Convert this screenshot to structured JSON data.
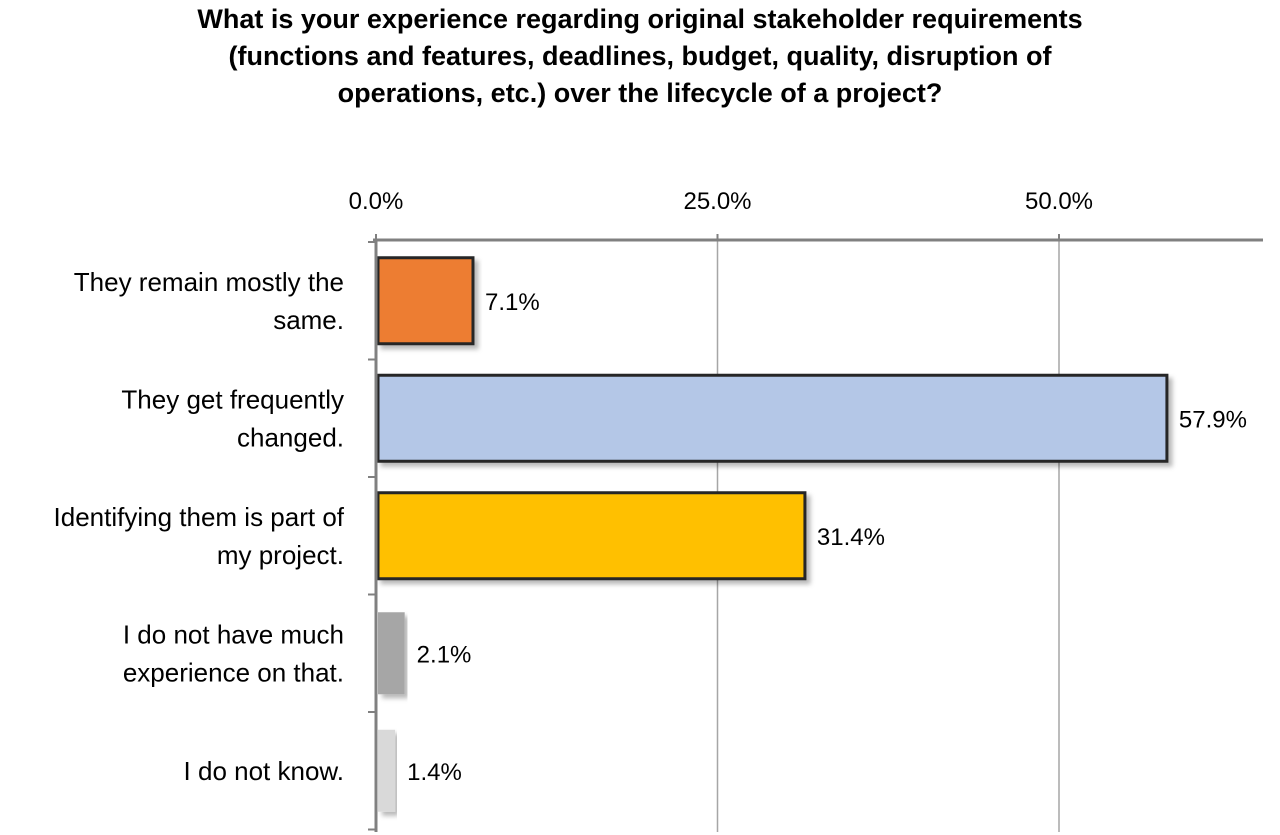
{
  "chart_data": {
    "type": "bar",
    "orientation": "horizontal",
    "title_lines": [
      "What is your experience regarding original stakeholder requirements",
      "(functions and features, deadlines, budget, quality, disruption of",
      "operations, etc.) over the lifecycle of a project?"
    ],
    "categories": [
      [
        "They remain mostly the",
        "same."
      ],
      [
        "They get frequently",
        "changed."
      ],
      [
        "Identifying them is part of",
        "my project."
      ],
      [
        "I do not have much",
        "experience on that."
      ],
      [
        "I do not know."
      ]
    ],
    "values": [
      7.1,
      57.9,
      31.4,
      2.1,
      1.4
    ],
    "value_labels": [
      "7.1%",
      "57.9%",
      "31.4%",
      "2.1%",
      "1.4%"
    ],
    "xticks": [
      0,
      25,
      50
    ],
    "xtick_labels": [
      "0.0%",
      "25.0%",
      "50.0%"
    ],
    "xlim": [
      0,
      65
    ],
    "xaxis_position": "top",
    "grid": true,
    "legend": "none",
    "bar_colors": [
      "#ED7D31",
      "#B4C7E7",
      "#FFC000",
      "#A6A6A6",
      "#D9D9D9"
    ],
    "bar_borders": [
      true,
      true,
      true,
      false,
      false
    ],
    "border_color": "#262626",
    "axis_color": "#808080",
    "grid_color": "#A6A6A6"
  }
}
